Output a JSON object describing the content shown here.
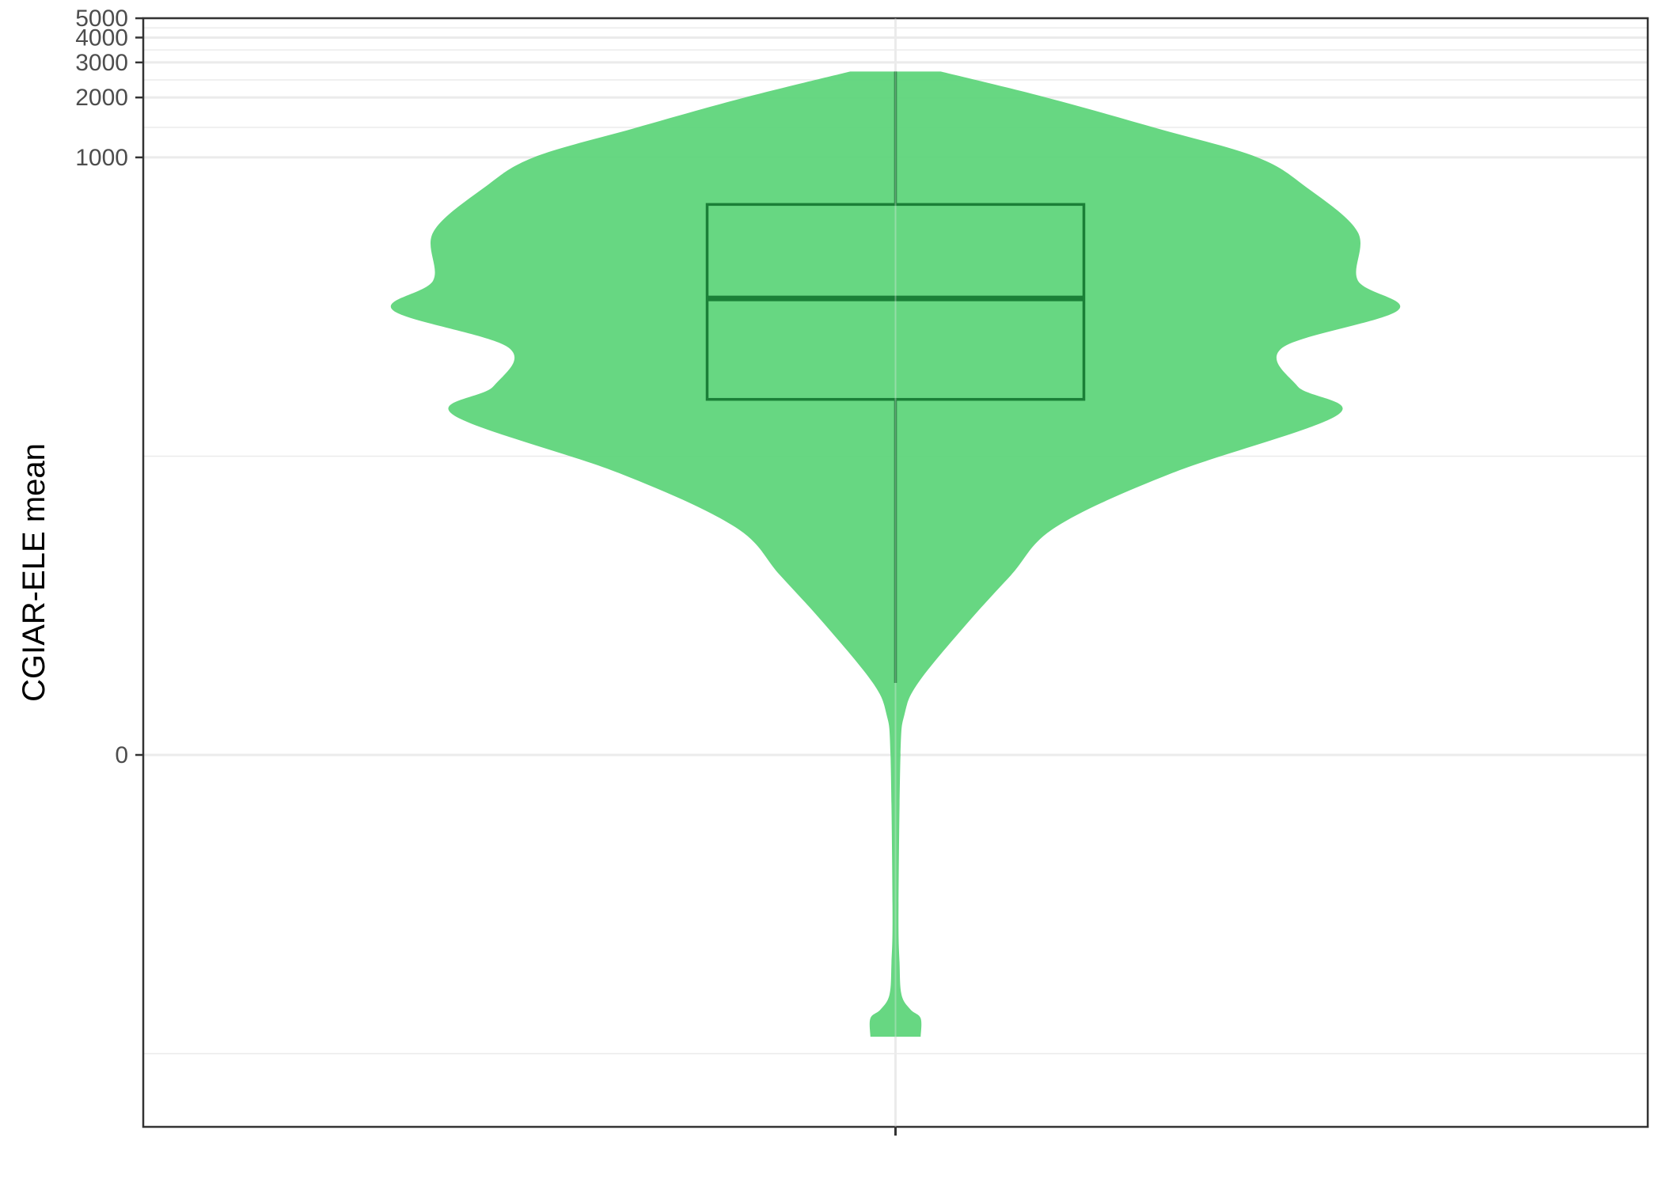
{
  "chart_data": {
    "type": "violin",
    "title": "",
    "xlabel": "",
    "ylabel": "CGIAR-ELE mean",
    "y_scale": "pseudo-log",
    "y_ticks": [
      0,
      1000,
      2000,
      3000,
      4000,
      5000
    ],
    "y_tick_labels": [
      "0",
      "1000",
      "2000",
      "3000",
      "4000",
      "5000"
    ],
    "x_ticks": [
      ""
    ],
    "grid": true,
    "legend": "none",
    "colors": {
      "violin_fill": "#5dd47a",
      "box_stroke": "#1a7f37",
      "grid": "#ebebeb",
      "panel_border": "#333333",
      "tick_label": "#4d4d4d"
    },
    "box": {
      "whisker_low": 1.3,
      "q1": 60,
      "median": 195,
      "q3": 580,
      "whisker_high": 2700
    },
    "violin": {
      "min": -25,
      "max": 2700,
      "profile": [
        {
          "y": -25,
          "w": 0.05
        },
        {
          "y": -20,
          "w": 0.05
        },
        {
          "y": -18,
          "w": 0.03
        },
        {
          "y": -15,
          "w": 0.012
        },
        {
          "y": -10,
          "w": 0.008
        },
        {
          "y": -5,
          "w": 0.006
        },
        {
          "y": 0,
          "w": 0.01
        },
        {
          "y": 0.6,
          "w": 0.018
        },
        {
          "y": 1.3,
          "w": 0.045
        },
        {
          "y": 3.5,
          "w": 0.14
        },
        {
          "y": 7,
          "w": 0.23
        },
        {
          "y": 13,
          "w": 0.32
        },
        {
          "y": 25,
          "w": 0.55
        },
        {
          "y": 50,
          "w": 0.88
        },
        {
          "y": 70,
          "w": 0.8
        },
        {
          "y": 110,
          "w": 0.77
        },
        {
          "y": 170,
          "w": 1.0
        },
        {
          "y": 240,
          "w": 0.92
        },
        {
          "y": 420,
          "w": 0.92
        },
        {
          "y": 700,
          "w": 0.82
        },
        {
          "y": 1000,
          "w": 0.72
        },
        {
          "y": 1400,
          "w": 0.52
        },
        {
          "y": 2000,
          "w": 0.3
        },
        {
          "y": 2700,
          "w": 0.09
        }
      ]
    }
  }
}
